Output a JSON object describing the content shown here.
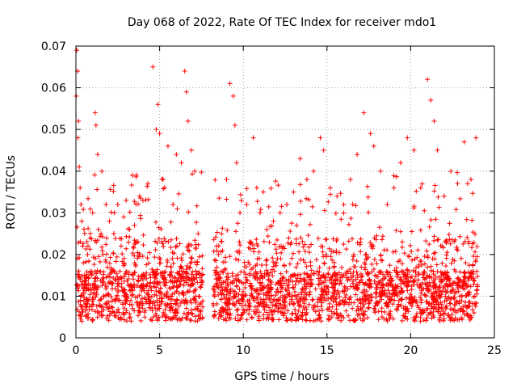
{
  "chart_data": {
    "type": "scatter",
    "title": "Day 068 of 2022, Rate Of TEC Index for receiver mdo1",
    "xlabel": "GPS time / hours",
    "ylabel": "ROTI / TECUs",
    "xlim": [
      0,
      25
    ],
    "ylim": [
      0,
      0.07
    ],
    "xticks": [
      "0",
      "5",
      "10",
      "15",
      "20",
      "25"
    ],
    "yticks": [
      "0",
      "0.01",
      "0.02",
      "0.03",
      "0.04",
      "0.05",
      "0.06",
      "0.07"
    ],
    "grid": true,
    "marker": "+",
    "color": "#ff0000",
    "gaps": [
      [
        7.6,
        8.2
      ]
    ],
    "series": [
      {
        "name": "ROTI",
        "x": [
          0.02,
          0.05,
          0.1,
          0.12,
          0.15,
          0.2,
          0.25,
          0.3,
          0.35,
          0.4,
          0.45,
          0.5,
          0.6,
          0.7,
          0.85,
          1.0,
          1.15,
          1.2,
          1.3,
          1.5,
          1.8,
          2.0,
          2.3,
          2.5,
          2.7,
          3.0,
          3.2,
          3.5,
          3.8,
          4.0,
          4.3,
          4.6,
          4.8,
          4.9,
          5.0,
          5.2,
          5.5,
          5.8,
          6.0,
          6.3,
          6.5,
          6.6,
          6.7,
          6.9,
          7.1,
          7.3,
          8.4,
          8.7,
          9.0,
          9.2,
          9.4,
          9.5,
          9.6,
          9.8,
          10.2,
          10.6,
          11.0,
          11.4,
          11.8,
          12.2,
          12.6,
          13.0,
          13.4,
          13.8,
          14.2,
          14.6,
          14.8,
          15.2,
          15.6,
          16.0,
          16.4,
          16.8,
          17.2,
          17.6,
          17.8,
          18.2,
          18.6,
          19.0,
          19.4,
          19.8,
          20.2,
          20.6,
          21.0,
          21.2,
          21.4,
          21.6,
          22.0,
          22.4,
          22.8,
          23.2,
          23.6,
          23.9
        ],
        "y": [
          0.058,
          0.069,
          0.064,
          0.048,
          0.052,
          0.041,
          0.036,
          0.032,
          0.028,
          0.022,
          0.018,
          0.015,
          0.012,
          0.02,
          0.024,
          0.03,
          0.054,
          0.051,
          0.044,
          0.025,
          0.032,
          0.028,
          0.03,
          0.032,
          0.022,
          0.033,
          0.026,
          0.027,
          0.034,
          0.033,
          0.037,
          0.065,
          0.05,
          0.056,
          0.049,
          0.038,
          0.046,
          0.032,
          0.044,
          0.042,
          0.064,
          0.059,
          0.052,
          0.045,
          0.04,
          0.025,
          0.022,
          0.025,
          0.038,
          0.061,
          0.058,
          0.051,
          0.042,
          0.03,
          0.032,
          0.048,
          0.03,
          0.026,
          0.028,
          0.03,
          0.032,
          0.035,
          0.043,
          0.038,
          0.04,
          0.048,
          0.045,
          0.036,
          0.034,
          0.032,
          0.038,
          0.044,
          0.054,
          0.049,
          0.046,
          0.04,
          0.032,
          0.036,
          0.042,
          0.048,
          0.045,
          0.036,
          0.062,
          0.057,
          0.052,
          0.045,
          0.034,
          0.04,
          0.037,
          0.047,
          0.038,
          0.048
        ]
      }
    ]
  }
}
